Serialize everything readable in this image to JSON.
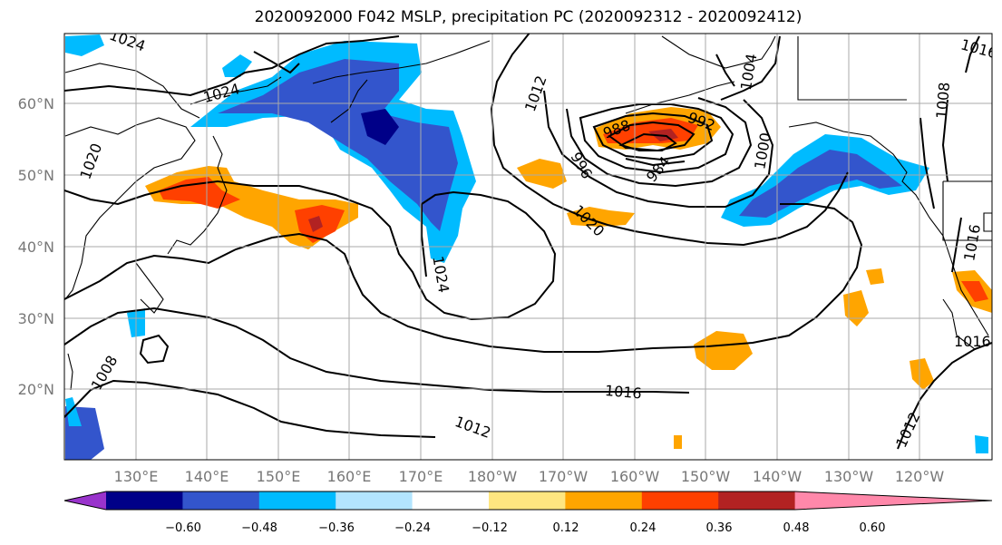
{
  "title": "2020092000 F042 MSLP, precipitation PC (2020092312 - 2020092412)",
  "map": {
    "lon_ticks": [
      "130°E",
      "140°E",
      "150°E",
      "160°E",
      "170°E",
      "180°W",
      "170°W",
      "160°W",
      "150°W",
      "140°W",
      "130°W",
      "120°W"
    ],
    "lat_ticks": [
      "20°N",
      "30°N",
      "40°N",
      "50°N",
      "60°N"
    ],
    "grid": true,
    "isobar_labels": [
      "1024",
      "1024",
      "1020",
      "1012",
      "1004",
      "1000",
      "988",
      "992",
      "996",
      "984",
      "1020",
      "1024",
      "1008",
      "1016",
      "1016",
      "1008",
      "1016",
      "1012",
      "1012",
      "1016"
    ]
  },
  "colorbar": {
    "ticks": [
      "−0.60",
      "−0.48",
      "−0.36",
      "−0.24",
      "−0.12",
      "0.12",
      "0.24",
      "0.36",
      "0.48",
      "0.60"
    ],
    "colors": [
      "#9933cc",
      "#000088",
      "#3355cc",
      "#00bbff",
      "#b3e5ff",
      "#ffffff",
      "#ffe680",
      "#ffa500",
      "#ff4000",
      "#b22222",
      "#ff88aa"
    ]
  }
}
